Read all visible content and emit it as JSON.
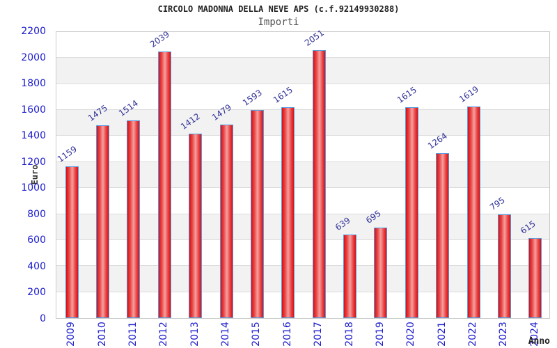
{
  "chart_data": {
    "type": "bar",
    "title": "CIRCOLO MADONNA DELLA NEVE APS (c.f.92149930288)",
    "subtitle": "Importi",
    "xlabel": "Anno",
    "ylabel": "Euro",
    "categories": [
      "2009",
      "2010",
      "2011",
      "2012",
      "2013",
      "2014",
      "2015",
      "2016",
      "2017",
      "2018",
      "2019",
      "2020",
      "2021",
      "2022",
      "2023",
      "2024"
    ],
    "values": [
      1159,
      1475,
      1514,
      2039,
      1412,
      1479,
      1593,
      1615,
      2051,
      639,
      695,
      1615,
      1264,
      1619,
      795,
      615
    ],
    "ylim": [
      0,
      2200
    ],
    "yticks": [
      0,
      200,
      400,
      600,
      800,
      1000,
      1200,
      1400,
      1600,
      1800,
      2000,
      2200
    ],
    "grid": "horizontal",
    "legend": "none",
    "colors": {
      "bar_edge": "#d90f12",
      "bar_center": "#f5a0a0",
      "bar_border": "#569de0",
      "tick_label": "#1a1acd",
      "value_label": "#333399",
      "band": "#f2f2f2",
      "gridline": "#dcdcdc",
      "title": "#222222",
      "subtitle": "#555555"
    }
  }
}
